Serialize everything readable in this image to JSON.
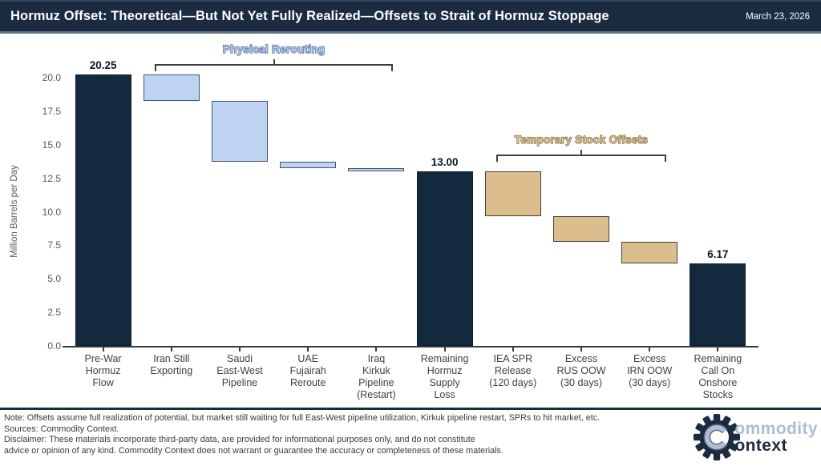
{
  "header": {
    "title": "Hormuz Offset: Theoretical—But Not Yet Fully Realized—Offsets to Strait of Hormuz Stoppage",
    "date": "March 23, 2026"
  },
  "chart_data": {
    "type": "waterfall-bar",
    "title": "Hormuz Offset: Theoretical—But Not Yet Fully Realized—Offsets to Strait of Hormuz Stoppage",
    "xlabel": "",
    "ylabel": "Million Barrels per Day",
    "ylim": [
      0,
      21.5
    ],
    "yticks": [
      0.0,
      2.5,
      5.0,
      7.5,
      10.0,
      12.5,
      15.0,
      17.5,
      20.0
    ],
    "grid": false,
    "steps": [
      {
        "label": [
          "Pre-War",
          "Hormuz",
          "Flow"
        ],
        "type": "absolute",
        "value": 20.25,
        "display": "20.25",
        "fill": "#132a3e",
        "stroke": "#0d1f2e"
      },
      {
        "label": [
          "Iran Still",
          "Exporting"
        ],
        "type": "decrease",
        "value": 2.0,
        "fill": "#bed3f2",
        "stroke": "#44546a"
      },
      {
        "label": [
          "Saudi",
          "East-West",
          "Pipeline"
        ],
        "type": "decrease",
        "value": 4.5,
        "fill": "#bed3f2",
        "stroke": "#44546a"
      },
      {
        "label": [
          "UAE",
          "Fujairah",
          "Reroute"
        ],
        "type": "decrease",
        "value": 0.5,
        "fill": "#bed3f2",
        "stroke": "#44546a"
      },
      {
        "label": [
          "Iraq",
          "Kirkuk",
          "Pipeline",
          "(Restart)"
        ],
        "type": "decrease",
        "value": 0.25,
        "fill": "#bed3f2",
        "stroke": "#44546a"
      },
      {
        "label": [
          "Remaining",
          "Hormuz",
          "Supply",
          "Loss"
        ],
        "type": "absolute",
        "value": 13.0,
        "display": "13.00",
        "fill": "#132a3e",
        "stroke": "#0d1f2e"
      },
      {
        "label": [
          "IEA SPR",
          "Release",
          "(120 days)"
        ],
        "type": "decrease",
        "value": 3.33,
        "fill": "#dcbd8d",
        "stroke": "#45403a"
      },
      {
        "label": [
          "Excess",
          "RUS OOW",
          "(30 days)"
        ],
        "type": "decrease",
        "value": 1.9,
        "fill": "#dcbd8d",
        "stroke": "#45403a"
      },
      {
        "label": [
          "Excess",
          "IRN OOW",
          "(30 days)"
        ],
        "type": "decrease",
        "value": 1.6,
        "fill": "#dcbd8d",
        "stroke": "#45403a"
      },
      {
        "label": [
          "Remaining",
          "Call On",
          "Onshore",
          "Stocks"
        ],
        "type": "absolute",
        "value": 6.17,
        "display": "6.17",
        "fill": "#132a3e",
        "stroke": "#0d1f2e"
      }
    ],
    "annotations": [
      {
        "label": "Physical Rerouting",
        "from": 1,
        "to": 4,
        "text_fill": "#b5c9ea",
        "text_stroke": "#3b5a8f"
      },
      {
        "label": "Temporary Stock Offsets",
        "from": 6,
        "to": 8,
        "text_fill": "#d9bd92",
        "text_stroke": "#7a6234"
      }
    ],
    "legend": null
  },
  "footer": {
    "notes": [
      "Note: Offsets assume full realization of potential, but market still waiting for full East-West pipeline utilization, Kirkuk pipeline restart, SPRs to hit market, etc.",
      "Sources: Commodity Context.",
      "Disclaimer: These materials incorporate third-party data, are provided for informational purposes only, and do not constitute",
      "advice or opinion of any kind. Commodity Context does not warrant or guarantee the accuracy or completeness of these materials."
    ],
    "logo": {
      "monogram": "C",
      "word_top": "ommodity",
      "word_bottom": "ontext"
    }
  },
  "colors": {
    "header_bg": "#1b2c40",
    "total_bar": "#132a3e",
    "reroute_bar": "#bed3f2",
    "stock_bar": "#dcbd8d",
    "bracket_line": "#3a3f47",
    "logo_light": "#a9bed8",
    "logo_dark": "#1b2c40"
  }
}
